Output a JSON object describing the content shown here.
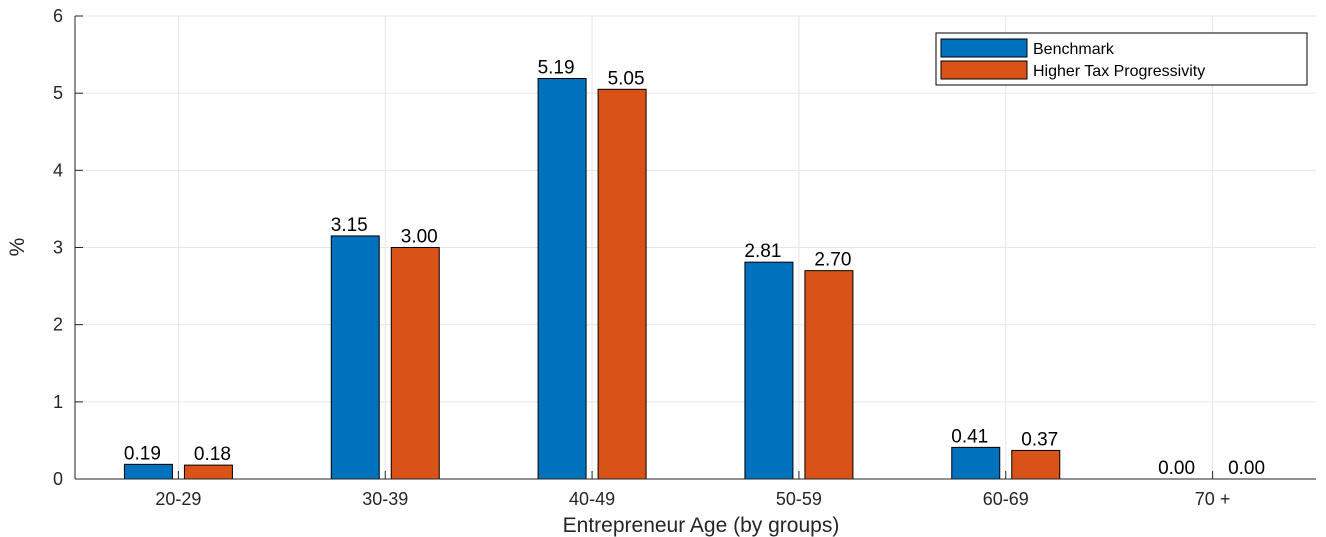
{
  "chart_data": {
    "type": "bar",
    "xlabel": "Entrepreneur Age (by groups)",
    "ylabel": "%",
    "categories": [
      "20-29",
      "30-39",
      "40-49",
      "50-59",
      "60-69",
      "70 +"
    ],
    "series": [
      {
        "name": "Benchmark",
        "color": "#0072BD",
        "values": [
          0.19,
          3.15,
          5.19,
          2.81,
          0.41,
          0.0
        ],
        "labels": [
          "0.19",
          "3.15",
          "5.19",
          "2.81",
          "0.41",
          "0.00"
        ]
      },
      {
        "name": "Higher Tax Progressivity",
        "color": "#D95319",
        "values": [
          0.18,
          3.0,
          5.05,
          2.7,
          0.37,
          0.0
        ],
        "labels": [
          "0.18",
          "3.00",
          "5.05",
          "2.70",
          "0.37",
          "0.00"
        ]
      }
    ],
    "ylim": [
      0,
      6
    ],
    "yticks": [
      "0",
      "1",
      "2",
      "3",
      "4",
      "5",
      "6"
    ],
    "grid": true,
    "legend_position": "top-right"
  }
}
